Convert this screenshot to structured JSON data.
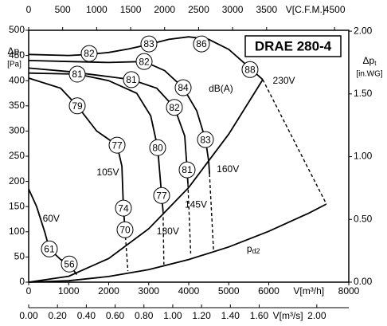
{
  "chart_data": {
    "type": "line",
    "title": "DRAE 280-4",
    "x_label": "V[m³/h]",
    "xlim": [
      0,
      8000
    ],
    "xticks": [
      0,
      1000,
      2000,
      3000,
      4000,
      5000,
      6000,
      8000
    ],
    "x2_label": "V[C.F.M.]",
    "x2lim": [
      0,
      4709
    ],
    "x2ticks": [
      0,
      500,
      1000,
      1500,
      2000,
      2500,
      3000,
      3500,
      4500
    ],
    "x3_label": "V[m³/s]",
    "x3lim": [
      0,
      2.222
    ],
    "x3ticks": [
      {
        "value": 0,
        "label": "0.00"
      },
      {
        "value": 0.2,
        "label": "0.20"
      },
      {
        "value": 0.4,
        "label": "0.40"
      },
      {
        "value": 0.6,
        "label": "0.60"
      },
      {
        "value": 0.8,
        "label": "0.80"
      },
      {
        "value": 1.0,
        "label": "1.00"
      },
      {
        "value": 1.2,
        "label": "1.20"
      },
      {
        "value": 1.4,
        "label": "1.40"
      },
      {
        "value": 1.6,
        "label": "1.60"
      },
      {
        "value": 2.0,
        "label": "2.00"
      }
    ],
    "y_label": {
      "main": "Δp",
      "sub": "t",
      "unit": "[Pa]"
    },
    "ylim": [
      0,
      500
    ],
    "yticks": [
      0,
      50,
      100,
      150,
      200,
      250,
      300,
      350,
      400,
      450,
      500
    ],
    "y2_label": {
      "main": "Δp",
      "sub": "t",
      "unit": "[in.WG]"
    },
    "y2lim": [
      0,
      2.007
    ],
    "y2ticks": [
      {
        "value": 0,
        "label": "0.00"
      },
      {
        "value": 0.5,
        "label": "0.50"
      },
      {
        "value": 1.0,
        "label": "1.00"
      },
      {
        "value": 1.5,
        "label": "1.50"
      },
      {
        "value": 2.0,
        "label": "2.00"
      }
    ],
    "line_color": "#000000",
    "series": [
      {
        "x": [
          0,
          1000,
          1500,
          2000,
          2500,
          3000,
          3500,
          4000,
          4500,
          5000,
          5500,
          5850
        ],
        "values": [
          452,
          450,
          452,
          456,
          463,
          472,
          482,
          487,
          482,
          462,
          427,
          402
        ],
        "dashed": false
      },
      {
        "x": [
          5850,
          7440
        ],
        "values": [
          402,
          155
        ],
        "dashed": true
      },
      {
        "x": [
          0,
          1000,
          2000,
          2886,
          3400,
          3861,
          4200,
          4418,
          4500,
          4520
        ],
        "values": [
          440,
          438,
          436,
          438,
          420,
          386,
          340,
          283,
          240,
          215
        ],
        "dashed": false
      },
      {
        "x": [
          4520,
          4620
        ],
        "values": [
          215,
          62
        ],
        "dashed": true
      },
      {
        "x": [
          0,
          1000,
          2000,
          2567,
          3200,
          3642,
          3900,
          3960,
          3980
        ],
        "values": [
          425,
          418,
          408,
          402,
          385,
          347,
          290,
          223,
          195
        ],
        "dashed": false
      },
      {
        "x": [
          3980,
          4050
        ],
        "values": [
          195,
          57
        ],
        "dashed": true
      },
      {
        "x": [
          0,
          1214,
          2000,
          2700,
          3050,
          3224,
          3323,
          3360
        ],
        "values": [
          415,
          413,
          400,
          375,
          330,
          267,
          172,
          140
        ],
        "dashed": false
      },
      {
        "x": [
          3360,
          3380
        ],
        "values": [
          140,
          35
        ],
        "dashed": true
      },
      {
        "x": [
          0,
          800,
          1214,
          1700,
          2209,
          2330,
          2368,
          2408,
          2420
        ],
        "values": [
          405,
          385,
          350,
          300,
          272,
          230,
          147,
          104,
          90
        ],
        "dashed": false
      },
      {
        "x": [
          2420,
          2480
        ],
        "values": [
          90,
          22
        ],
        "dashed": true
      },
      {
        "x": [
          0,
          200,
          400,
          517,
          800,
          1015,
          1200
        ],
        "values": [
          185,
          150,
          100,
          66,
          45,
          36,
          15
        ],
        "dashed": false
      },
      {
        "x": [
          0,
          1000,
          2000,
          3000,
          4000,
          5000,
          5850
        ],
        "values": [
          0,
          11.7,
          47,
          106,
          188,
          294,
          402
        ],
        "dashed": false
      },
      {
        "x": [
          0,
          1000,
          2000,
          3000,
          4000,
          5000,
          6000,
          7000,
          7440
        ],
        "values": [
          0,
          2.8,
          11.2,
          25,
          45,
          70,
          101,
          137,
          155
        ],
        "dashed": false
      }
    ],
    "db_labels": [
      {
        "text": "82",
        "x": 1512,
        "y": 454
      },
      {
        "text": "83",
        "x": 3005,
        "y": 473
      },
      {
        "text": "86",
        "x": 4318,
        "y": 473
      },
      {
        "text": "88",
        "x": 5532,
        "y": 422
      },
      {
        "text": "82",
        "x": 2886,
        "y": 438
      },
      {
        "text": "81",
        "x": 1214,
        "y": 413
      },
      {
        "text": "81",
        "x": 2567,
        "y": 402
      },
      {
        "text": "84",
        "x": 3861,
        "y": 386
      },
      {
        "text": "79",
        "x": 1214,
        "y": 350
      },
      {
        "text": "82",
        "x": 3642,
        "y": 347
      },
      {
        "text": "77",
        "x": 2209,
        "y": 272
      },
      {
        "text": "80",
        "x": 3224,
        "y": 267
      },
      {
        "text": "83",
        "x": 4418,
        "y": 283
      },
      {
        "text": "81",
        "x": 3960,
        "y": 223
      },
      {
        "text": "77",
        "x": 3323,
        "y": 172
      },
      {
        "text": "74",
        "x": 2368,
        "y": 147
      },
      {
        "text": "70",
        "x": 2408,
        "y": 104
      },
      {
        "text": "61",
        "x": 517,
        "y": 66
      },
      {
        "text": "56",
        "x": 1015,
        "y": 36
      }
    ],
    "annotations": [
      {
        "text": "dB(A)",
        "x": 4500,
        "y": 383
      },
      {
        "text": "230V",
        "x": 6100,
        "y": 399
      },
      {
        "text": "160V",
        "x": 4700,
        "y": 223
      },
      {
        "text": "145V",
        "x": 3900,
        "y": 153
      },
      {
        "text": "130V",
        "x": 3200,
        "y": 100
      },
      {
        "text": "105V",
        "x": 1700,
        "y": 217
      },
      {
        "text": "60V",
        "x": 350,
        "y": 125
      },
      {
        "text": "p",
        "sub": "d2",
        "x": 5450,
        "y": 65
      }
    ]
  }
}
